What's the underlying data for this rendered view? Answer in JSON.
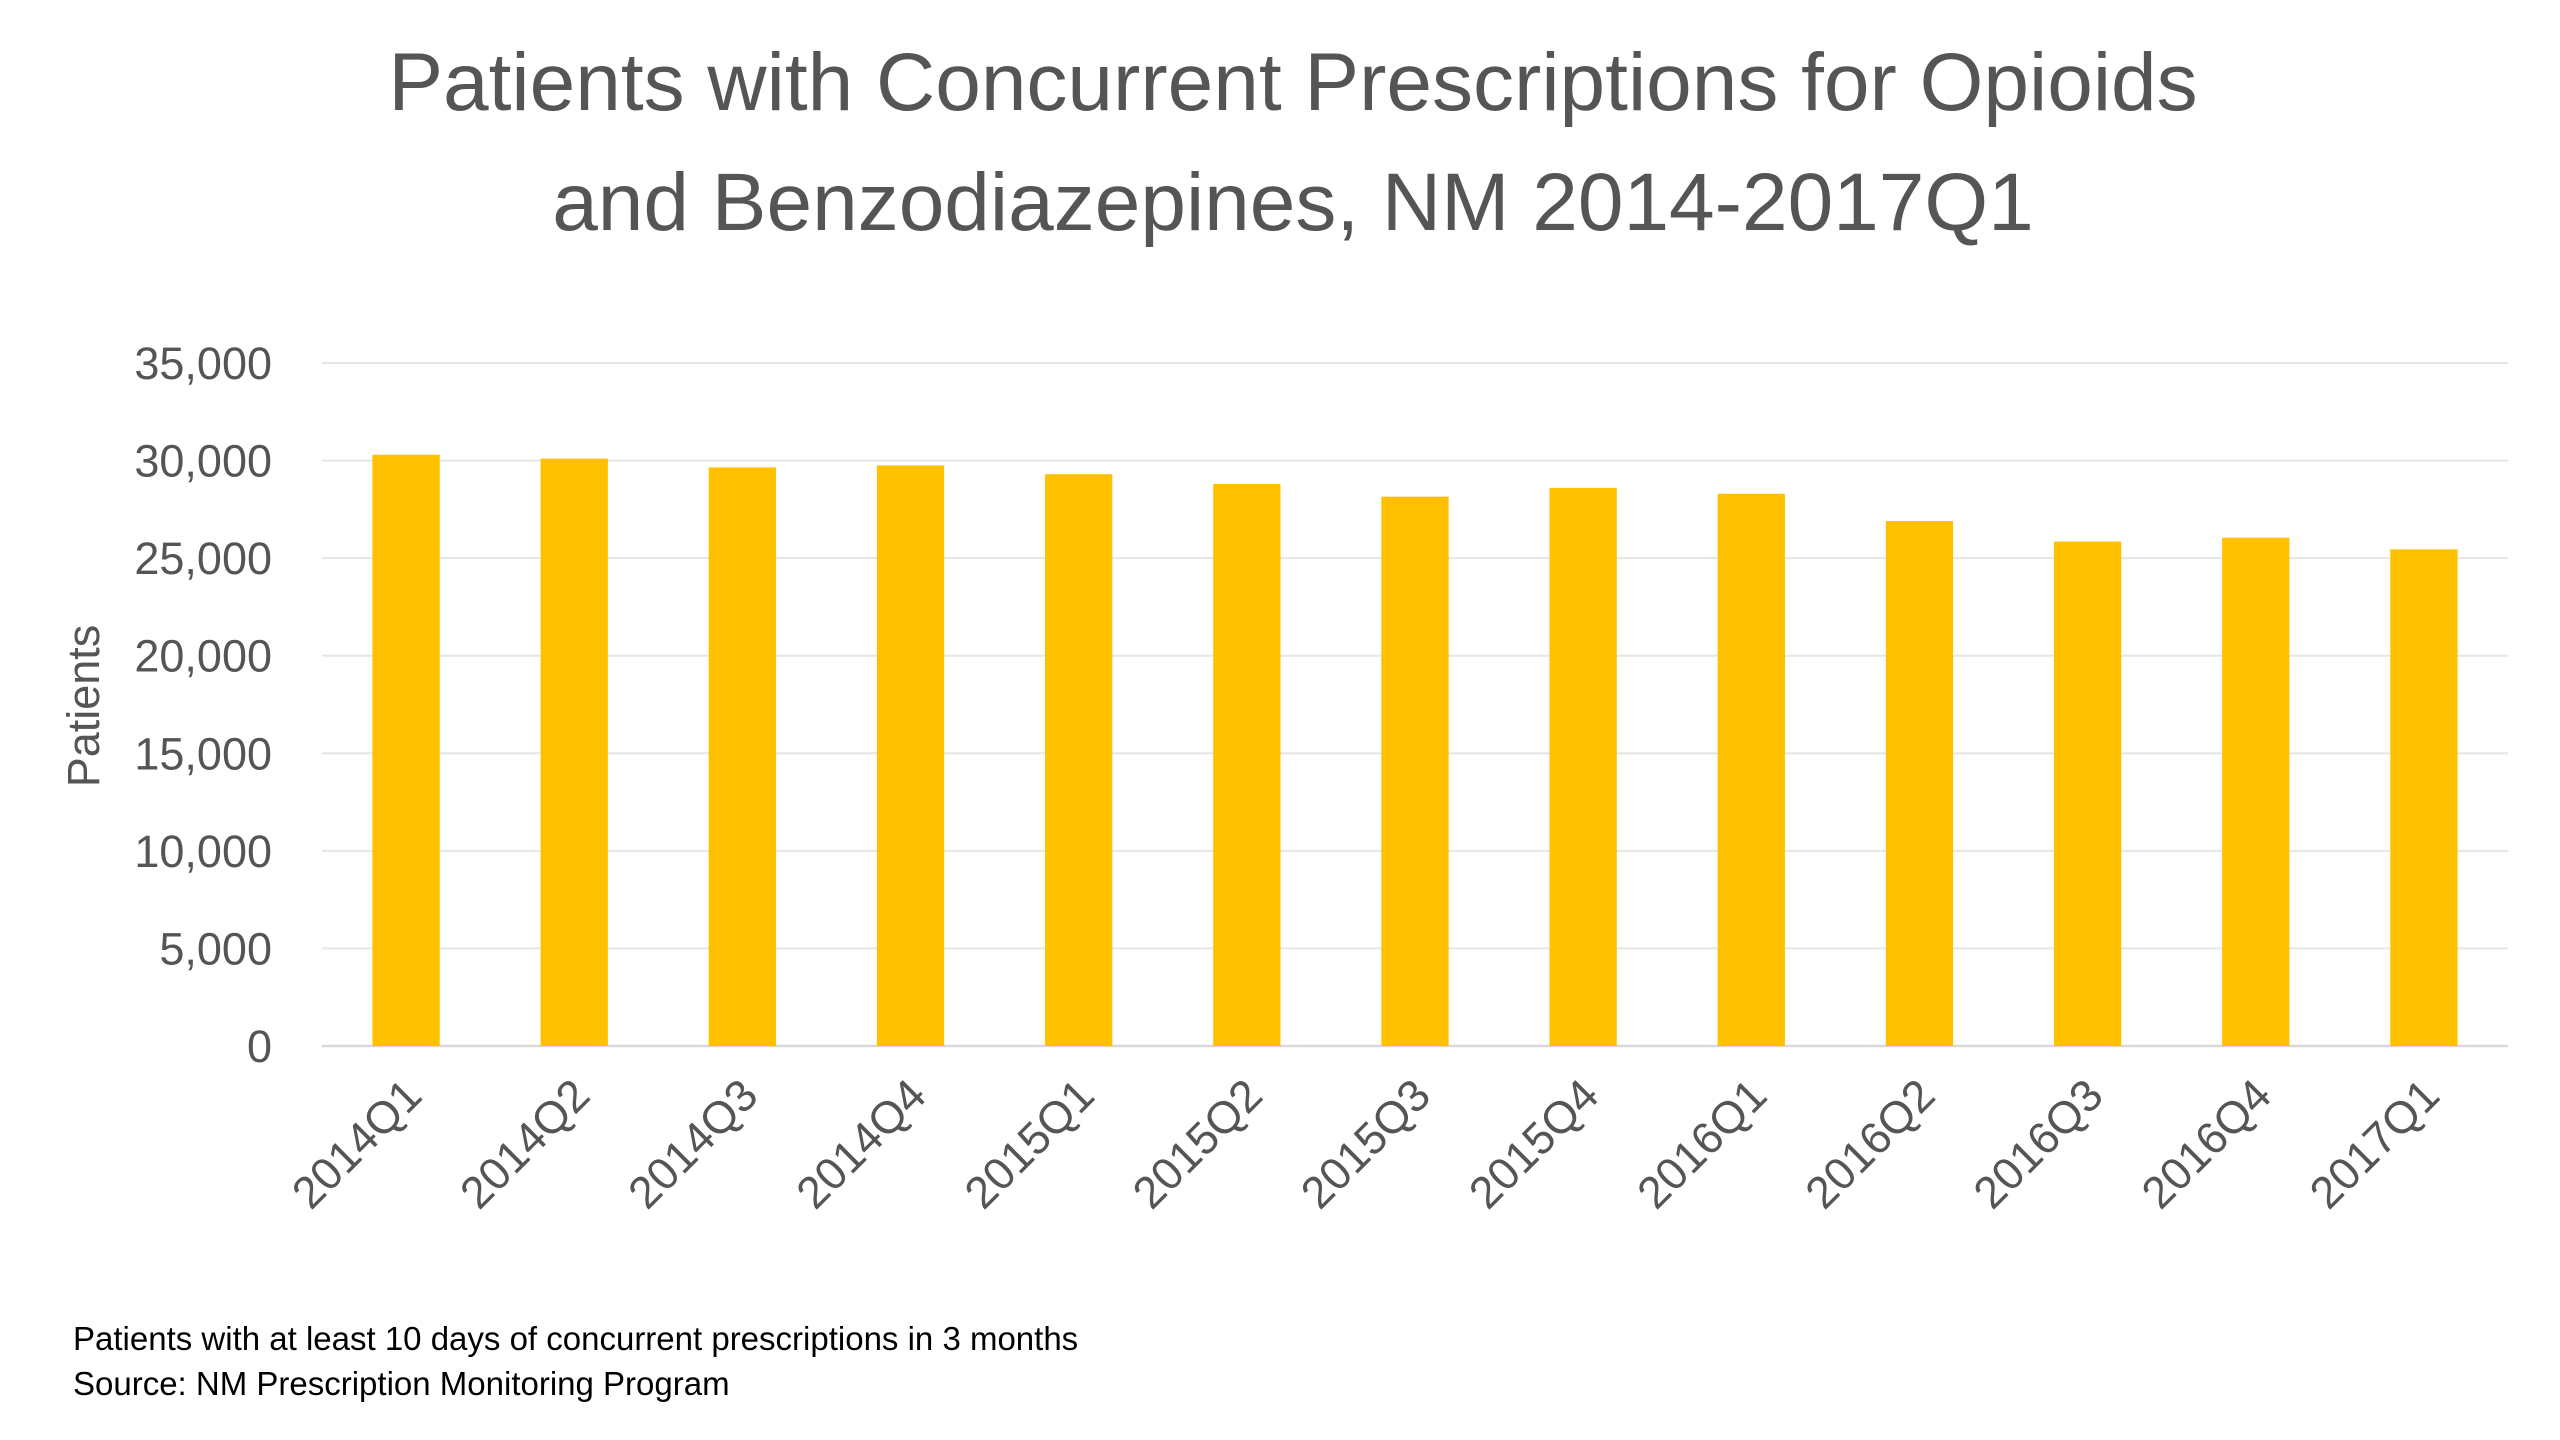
{
  "chart_data": {
    "type": "bar",
    "title_lines": [
      "Patients with Concurrent Prescriptions for Opioids",
      "and Benzodiazepines, NM 2014-2017Q1"
    ],
    "ylabel": "Patients",
    "xlabel": "",
    "ylim": [
      0,
      35000
    ],
    "y_ticks": [
      0,
      5000,
      10000,
      15000,
      20000,
      25000,
      30000,
      35000
    ],
    "y_tick_labels": [
      "0",
      "5,000",
      "10,000",
      "15,000",
      "20,000",
      "25,000",
      "30,000",
      "35,000"
    ],
    "categories": [
      "2014Q1",
      "2014Q2",
      "2014Q3",
      "2014Q4",
      "2015Q1",
      "2015Q2",
      "2015Q3",
      "2015Q4",
      "2016Q1",
      "2016Q2",
      "2016Q3",
      "2016Q4",
      "2017Q1"
    ],
    "values": [
      30300,
      30100,
      29650,
      29750,
      29300,
      28800,
      28150,
      28600,
      28300,
      26900,
      25850,
      26050,
      25450
    ],
    "grid": true,
    "legend": "none",
    "bar_color": "#FFC000",
    "footnotes": [
      "Patients with at least 10 days of concurrent prescriptions in 3 months",
      "Source:  NM Prescription Monitoring Program"
    ]
  }
}
